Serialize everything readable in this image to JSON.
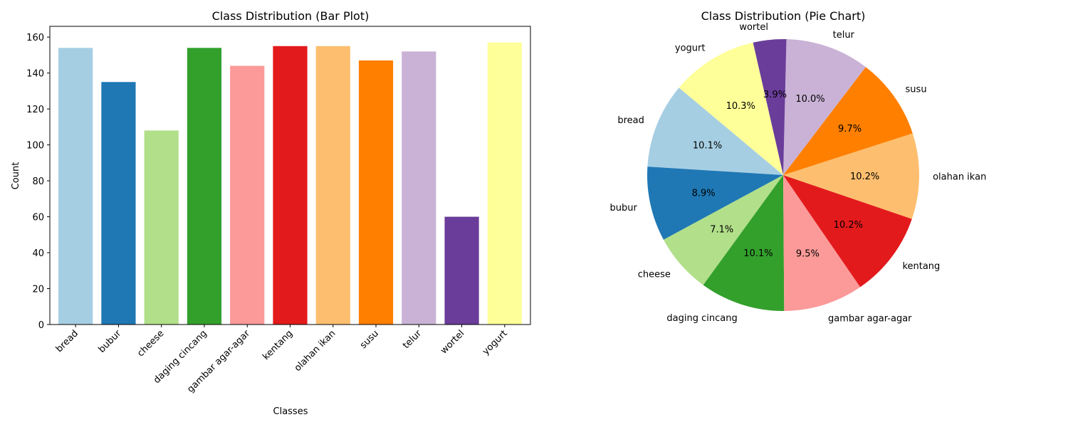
{
  "chart_data": [
    {
      "type": "bar",
      "title": "Class Distribution (Bar Plot)",
      "xlabel": "Classes",
      "ylabel": "Count",
      "ylim": [
        0,
        166
      ],
      "yticks": [
        0,
        20,
        40,
        60,
        80,
        100,
        120,
        140,
        160
      ],
      "categories": [
        "bread",
        "bubur",
        "cheese",
        "daging cincang",
        "gambar agar-agar",
        "kentang",
        "olahan ikan",
        "susu",
        "telur",
        "wortel",
        "yogurt"
      ],
      "values": [
        154,
        135,
        108,
        154,
        144,
        155,
        155,
        147,
        152,
        60,
        157
      ],
      "colors": [
        "#a6cee3",
        "#1f78b4",
        "#b2df8a",
        "#33a02c",
        "#fb9a99",
        "#e31a1c",
        "#fdbf6f",
        "#ff7f00",
        "#cab2d6",
        "#6a3d9a",
        "#ffff99"
      ],
      "grid": false,
      "legend": "none"
    },
    {
      "type": "pie",
      "title": "Class Distribution (Pie Chart)",
      "categories": [
        "bread",
        "bubur",
        "cheese",
        "daging cincang",
        "gambar agar-agar",
        "kentang",
        "olahan ikan",
        "susu",
        "telur",
        "wortel",
        "yogurt"
      ],
      "values": [
        154,
        135,
        108,
        154,
        144,
        155,
        155,
        147,
        152,
        60,
        157
      ],
      "percent_labels": [
        "10.1%",
        "8.9%",
        "7.1%",
        "10.1%",
        "9.5%",
        "10.2%",
        "10.2%",
        "9.7%",
        "10.0%",
        "3.9%",
        "10.3%"
      ],
      "colors": [
        "#a6cee3",
        "#1f78b4",
        "#b2df8a",
        "#33a02c",
        "#fb9a99",
        "#e31a1c",
        "#fdbf6f",
        "#ff7f00",
        "#cab2d6",
        "#6a3d9a",
        "#ffff99"
      ],
      "start_angle_deg": 140,
      "direction": "counterclockwise",
      "legend": "none"
    }
  ]
}
